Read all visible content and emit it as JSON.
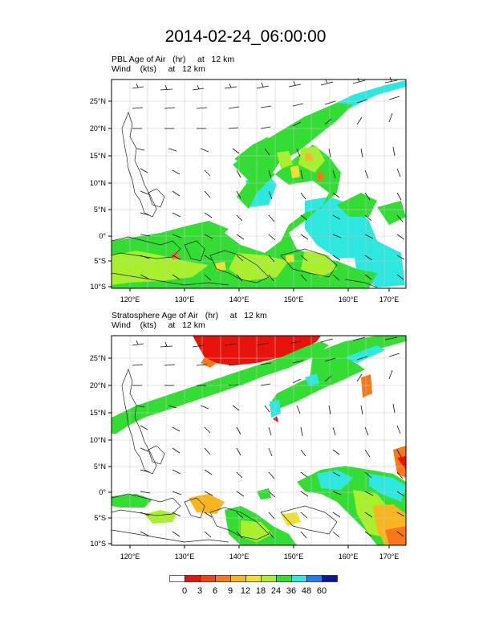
{
  "title": "2014-02-24_06:00:00",
  "panels": [
    {
      "line1": "PBL Age of Air   (hr)     at   12 km",
      "line2": "Wind    (kts)     at   12 km"
    },
    {
      "line1": "Stratosphere Age of Air   (hr)     at   12 km",
      "line2": "Wind    (kts)     at   12 km"
    }
  ],
  "lat_ticks": [
    "25°N",
    "20°N",
    "15°N",
    "10°N",
    "5°N",
    "0°",
    "5°S",
    "10°S"
  ],
  "lon_ticks": [
    "120°E",
    "130°E",
    "140°E",
    "150°E",
    "160°E",
    "170°E"
  ],
  "colorbar": {
    "labels": [
      "0",
      "3",
      "6",
      "9",
      "12",
      "18",
      "24",
      "36",
      "48",
      "60"
    ],
    "colors": [
      "#ffffff",
      "#e8140c",
      "#f4420e",
      "#f7771a",
      "#f9b520",
      "#f2e12a",
      "#a8ef2c",
      "#33dd33",
      "#2ee8e0",
      "#1f7ff0",
      "#08189e"
    ]
  },
  "colors": {
    "green": "#33dd33",
    "lime": "#a8ef2c",
    "cyan": "#2ee8e0",
    "yellow": "#f2e12a",
    "orange": "#f7771a",
    "red": "#e8140c"
  }
}
